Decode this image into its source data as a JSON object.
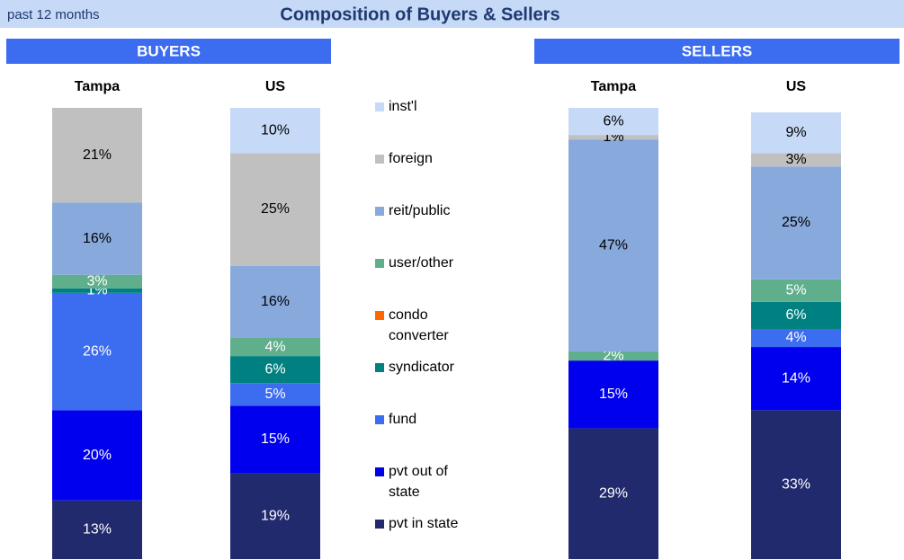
{
  "chart_data": {
    "type": "bar",
    "stacked": true,
    "title": "Composition of Buyers & Sellers",
    "subtitle": "past 12 months",
    "groups": [
      "BUYERS",
      "SELLERS"
    ],
    "categories": [
      "Tampa",
      "US",
      "Tampa",
      "US"
    ],
    "ylim": [
      0,
      100
    ],
    "series": [
      {
        "name": "pvt in state",
        "color": "#222a6e",
        "values": [
          13,
          19,
          29,
          33
        ],
        "value_labels": [
          "13%",
          "19%",
          "29%",
          "33%"
        ]
      },
      {
        "name": "pvt out of state",
        "color": "#0000ee",
        "values": [
          20,
          15,
          15,
          14
        ],
        "value_labels": [
          "20%",
          "15%",
          "15%",
          "14%"
        ]
      },
      {
        "name": "fund",
        "color": "#3c6cf0",
        "values": [
          26,
          5,
          0,
          4
        ],
        "value_labels": [
          "26%",
          "5%",
          null,
          "4%"
        ]
      },
      {
        "name": "syndicator",
        "color": "#008080",
        "values": [
          1,
          6,
          0,
          6
        ],
        "value_labels": [
          "1%",
          "6%",
          null,
          "6%"
        ]
      },
      {
        "name": "condo converter",
        "color": "#ff6600",
        "values": [
          0,
          0,
          0,
          0
        ],
        "value_labels": [
          null,
          null,
          null,
          null
        ]
      },
      {
        "name": "user/other",
        "color": "#5fae8c",
        "values": [
          3,
          4,
          2,
          5
        ],
        "value_labels": [
          "3%",
          "4%",
          "2%",
          "5%"
        ]
      },
      {
        "name": "reit/public",
        "color": "#87a9dc",
        "values": [
          16,
          16,
          47,
          25
        ],
        "value_labels": [
          "16%",
          "16%",
          "47%",
          "25%"
        ]
      },
      {
        "name": "foreign",
        "color": "#c0c0c0",
        "values": [
          21,
          25,
          1,
          3
        ],
        "value_labels": [
          "21%",
          "25%",
          "1%",
          "3%"
        ]
      },
      {
        "name": "inst'l",
        "color": "#c6d9f7",
        "values": [
          0,
          10,
          6,
          9
        ],
        "value_labels": [
          null,
          "10%",
          "6%",
          "9%"
        ]
      }
    ]
  }
}
